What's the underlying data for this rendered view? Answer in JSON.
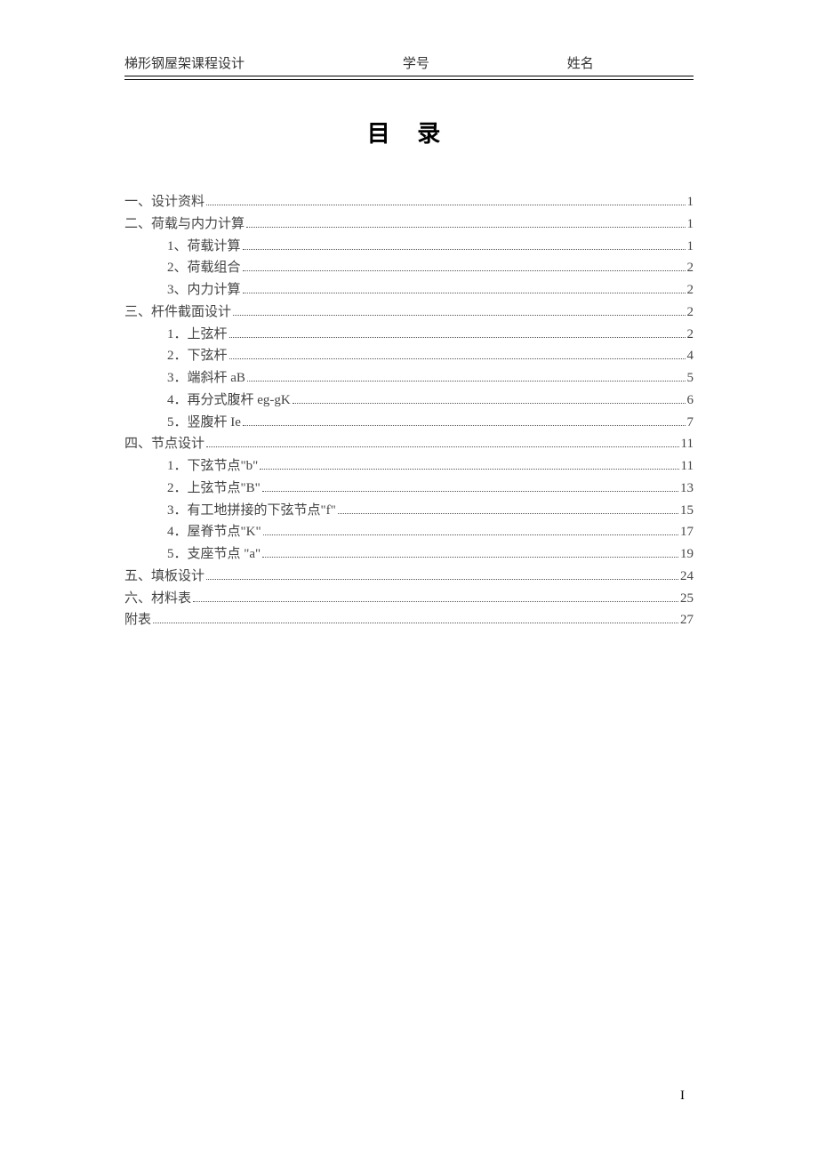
{
  "header": {
    "left": "梯形钢屋架课程设计",
    "mid": "学号",
    "right": "姓名"
  },
  "title": "目 录",
  "toc": [
    {
      "level": 0,
      "label": "一、设计资料",
      "page": "1"
    },
    {
      "level": 0,
      "label": "二、荷载与内力计算",
      "page": "1"
    },
    {
      "level": 1,
      "label": "1、荷载计算",
      "page": "1"
    },
    {
      "level": 1,
      "label": "2、荷载组合",
      "page": "2"
    },
    {
      "level": 1,
      "label": "3、内力计算",
      "page": "2"
    },
    {
      "level": 0,
      "label": "三、杆件截面设计",
      "page": "2"
    },
    {
      "level": 1,
      "label": "1．上弦杆",
      "page": "2"
    },
    {
      "level": 1,
      "label": "2．下弦杆",
      "page": "4"
    },
    {
      "level": 1,
      "label": "3．端斜杆 aB",
      "page": "5"
    },
    {
      "level": 1,
      "label": "4．再分式腹杆 eg-gK",
      "page": "6"
    },
    {
      "level": 1,
      "label": "5．竖腹杆 Ie",
      "page": "7"
    },
    {
      "level": 0,
      "label": "四、节点设计",
      "page": "11"
    },
    {
      "level": 1,
      "label": "1．下弦节点\"b\"",
      "page": "11"
    },
    {
      "level": 1,
      "label": "2．上弦节点\"B\"",
      "page": "13"
    },
    {
      "level": 1,
      "label": "3．有工地拼接的下弦节点\"f\"",
      "page": "15"
    },
    {
      "level": 1,
      "label": "4．屋脊节点\"K\"",
      "page": "17"
    },
    {
      "level": 1,
      "label": "5．支座节点 \"a\"",
      "page": "19"
    },
    {
      "level": 0,
      "label": "五、填板设计",
      "page": "24"
    },
    {
      "level": 0,
      "label": "六、材料表",
      "page": "25"
    },
    {
      "level": 0,
      "label": "附表",
      "page": "27"
    }
  ],
  "pageNumber": "I"
}
